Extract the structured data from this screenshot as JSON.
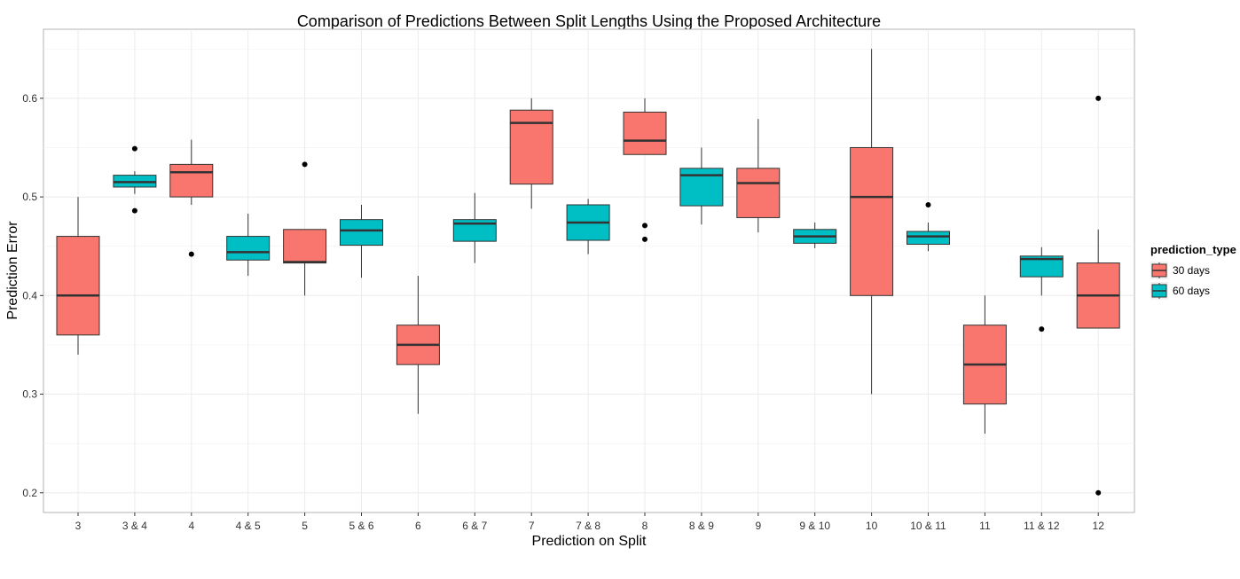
{
  "chart_data": {
    "type": "boxplot",
    "title": "Comparison of Predictions Between Split Lengths Using the Proposed Architecture",
    "xlabel": "Prediction on Split",
    "ylabel": "Prediction Error",
    "ylim": [
      0.18,
      0.67
    ],
    "yticks": [
      0.2,
      0.3,
      0.4,
      0.5,
      0.6
    ],
    "ytick_labels": [
      "0.2",
      "0.3",
      "0.4",
      "0.5",
      "0.6"
    ],
    "legend": {
      "title": "prediction_type",
      "position": "right",
      "entries": [
        {
          "name": "30 days",
          "color": "#F8766D"
        },
        {
          "name": "60 days",
          "color": "#00BFC4"
        }
      ]
    },
    "categories": [
      "3",
      "3 & 4",
      "4",
      "4 & 5",
      "5",
      "5 & 6",
      "6",
      "6 & 7",
      "7",
      "7 & 8",
      "8",
      "8 & 9",
      "9",
      "9 & 10",
      "10",
      "10 & 11",
      "11",
      "11 & 12",
      "12"
    ],
    "boxes": [
      {
        "category": "3",
        "series": "30 days",
        "whisker_low": 0.34,
        "q1": 0.36,
        "median": 0.4,
        "q3": 0.46,
        "whisker_high": 0.5,
        "outliers": []
      },
      {
        "category": "3 & 4",
        "series": "60 days",
        "whisker_low": 0.503,
        "q1": 0.51,
        "median": 0.515,
        "q3": 0.522,
        "whisker_high": 0.526,
        "outliers": [
          0.549,
          0.486
        ]
      },
      {
        "category": "4",
        "series": "30 days",
        "whisker_low": 0.492,
        "q1": 0.5,
        "median": 0.525,
        "q3": 0.533,
        "whisker_high": 0.558,
        "outliers": [
          0.442
        ]
      },
      {
        "category": "4 & 5",
        "series": "60 days",
        "whisker_low": 0.42,
        "q1": 0.436,
        "median": 0.444,
        "q3": 0.46,
        "whisker_high": 0.483,
        "outliers": []
      },
      {
        "category": "5",
        "series": "30 days",
        "whisker_low": 0.4,
        "q1": 0.433,
        "median": 0.434,
        "q3": 0.467,
        "whisker_high": 0.467,
        "outliers": [
          0.533
        ]
      },
      {
        "category": "5 & 6",
        "series": "60 days",
        "whisker_low": 0.418,
        "q1": 0.451,
        "median": 0.466,
        "q3": 0.477,
        "whisker_high": 0.492,
        "outliers": []
      },
      {
        "category": "6",
        "series": "30 days",
        "whisker_low": 0.28,
        "q1": 0.33,
        "median": 0.35,
        "q3": 0.37,
        "whisker_high": 0.42,
        "outliers": []
      },
      {
        "category": "6 & 7",
        "series": "60 days",
        "whisker_low": 0.433,
        "q1": 0.455,
        "median": 0.473,
        "q3": 0.477,
        "whisker_high": 0.504,
        "outliers": []
      },
      {
        "category": "7",
        "series": "30 days",
        "whisker_low": 0.488,
        "q1": 0.513,
        "median": 0.575,
        "q3": 0.588,
        "whisker_high": 0.6,
        "outliers": []
      },
      {
        "category": "7 & 8",
        "series": "60 days",
        "whisker_low": 0.442,
        "q1": 0.456,
        "median": 0.474,
        "q3": 0.492,
        "whisker_high": 0.498,
        "outliers": []
      },
      {
        "category": "8",
        "series": "30 days",
        "whisker_low": 0.543,
        "q1": 0.543,
        "median": 0.557,
        "q3": 0.586,
        "whisker_high": 0.6,
        "outliers": [
          0.471,
          0.457
        ]
      },
      {
        "category": "8 & 9",
        "series": "60 days",
        "whisker_low": 0.472,
        "q1": 0.491,
        "median": 0.522,
        "q3": 0.529,
        "whisker_high": 0.55,
        "outliers": []
      },
      {
        "category": "9",
        "series": "30 days",
        "whisker_low": 0.464,
        "q1": 0.479,
        "median": 0.514,
        "q3": 0.529,
        "whisker_high": 0.579,
        "outliers": []
      },
      {
        "category": "9 & 10",
        "series": "60 days",
        "whisker_low": 0.448,
        "q1": 0.453,
        "median": 0.46,
        "q3": 0.467,
        "whisker_high": 0.474,
        "outliers": []
      },
      {
        "category": "10",
        "series": "30 days",
        "whisker_low": 0.3,
        "q1": 0.4,
        "median": 0.5,
        "q3": 0.55,
        "whisker_high": 0.65,
        "outliers": []
      },
      {
        "category": "10 & 11",
        "series": "60 days",
        "whisker_low": 0.445,
        "q1": 0.452,
        "median": 0.46,
        "q3": 0.465,
        "whisker_high": 0.474,
        "outliers": [
          0.492
        ]
      },
      {
        "category": "11",
        "series": "30 days",
        "whisker_low": 0.26,
        "q1": 0.29,
        "median": 0.33,
        "q3": 0.37,
        "whisker_high": 0.4,
        "outliers": []
      },
      {
        "category": "11 & 12",
        "series": "60 days",
        "whisker_low": 0.4,
        "q1": 0.419,
        "median": 0.437,
        "q3": 0.44,
        "whisker_high": 0.449,
        "outliers": [
          0.366
        ]
      },
      {
        "category": "12",
        "series": "30 days",
        "whisker_low": 0.367,
        "q1": 0.367,
        "median": 0.4,
        "q3": 0.433,
        "whisker_high": 0.467,
        "outliers": [
          0.6,
          0.2
        ]
      }
    ]
  }
}
